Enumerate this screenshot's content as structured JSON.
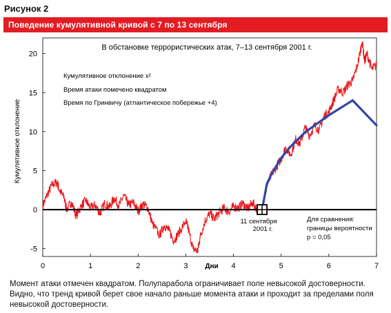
{
  "figure_label": "Рисунок 2",
  "banner_title": "Поведение кумулятивной кривой с 7 по 13 сентября",
  "caption": "Момент атаки отмечен квадратом. Полупарабола ограничивает поле невысокой достоверности. Видно, что тренд кривой берет свое начало раньше момента атаки и проходит за пределами поля невысокой достоверности.",
  "colors": {
    "banner": "#e31b23",
    "series": "#e8161b",
    "bound": "#2f45a8",
    "axis": "#000000"
  },
  "chart_data": {
    "type": "line",
    "title": "В обстановке террористических атак, 7–13 сентября 2001 г.",
    "annotations": [
      "Кумулятивное отклонение x²",
      "Время атаки помечено квадратом",
      "Время по Гринвичу (атлантическое побережье +4)"
    ],
    "xlabel": "Дни",
    "ylabel": "Кумулятивное отклонение",
    "xlim": [
      0,
      7
    ],
    "ylim": [
      -6,
      22
    ],
    "xticks": [
      0,
      1,
      2,
      3,
      4,
      5,
      6,
      7
    ],
    "yticks": [
      -5,
      0,
      5,
      10,
      15,
      20
    ],
    "grid": false,
    "attack_marker": {
      "x": 4.6,
      "y": 0,
      "label": "11 сентября 2001 г."
    },
    "comparison_note": "Для сравнения: границы вероятности p = 0,05",
    "series": [
      {
        "style": "noisy",
        "points": [
          [
            0,
            0.5
          ],
          [
            0.1,
            2
          ],
          [
            0.2,
            3.2
          ],
          [
            0.3,
            3.5
          ],
          [
            0.35,
            2.5
          ],
          [
            0.45,
            1.5
          ],
          [
            0.5,
            0
          ],
          [
            0.6,
            1
          ],
          [
            0.7,
            -0.8
          ],
          [
            0.8,
            0.4
          ],
          [
            0.9,
            1.2
          ],
          [
            1.0,
            0.2
          ],
          [
            1.1,
            0.6
          ],
          [
            1.2,
            -0.5
          ],
          [
            1.3,
            0.8
          ],
          [
            1.4,
            0.3
          ],
          [
            1.5,
            1.5
          ],
          [
            1.6,
            0.5
          ],
          [
            1.7,
            1.8
          ],
          [
            1.8,
            0.6
          ],
          [
            1.9,
            0.9
          ],
          [
            2.0,
            -0.2
          ],
          [
            2.1,
            0.7
          ],
          [
            2.2,
            0.3
          ],
          [
            2.3,
            -1.8
          ],
          [
            2.45,
            -3.3
          ],
          [
            2.55,
            -2
          ],
          [
            2.65,
            -2.7
          ],
          [
            2.75,
            -4
          ],
          [
            2.85,
            -3
          ],
          [
            3.0,
            -1.5
          ],
          [
            3.05,
            -2.4
          ],
          [
            3.15,
            -5
          ],
          [
            3.25,
            -5.3
          ],
          [
            3.3,
            -3.5
          ],
          [
            3.4,
            -1.5
          ],
          [
            3.5,
            -0.5
          ],
          [
            3.6,
            -1.2
          ],
          [
            3.7,
            -0.4
          ],
          [
            3.8,
            0.2
          ],
          [
            3.9,
            -0.3
          ],
          [
            4.0,
            0.4
          ],
          [
            4.1,
            0.2
          ],
          [
            4.2,
            0.8
          ],
          [
            4.3,
            0.1
          ],
          [
            4.4,
            0.9
          ],
          [
            4.5,
            0
          ],
          [
            4.6,
            0
          ],
          [
            4.7,
            3
          ],
          [
            4.8,
            4.5
          ],
          [
            4.9,
            5.5
          ],
          [
            5.0,
            6.5
          ],
          [
            5.1,
            8
          ],
          [
            5.2,
            7
          ],
          [
            5.3,
            9
          ],
          [
            5.4,
            8.5
          ],
          [
            5.5,
            10.5
          ],
          [
            5.6,
            9.5
          ],
          [
            5.7,
            10.8
          ],
          [
            5.8,
            10.2
          ],
          [
            5.9,
            12
          ],
          [
            6.0,
            12.5
          ],
          [
            6.1,
            14
          ],
          [
            6.2,
            15.5
          ],
          [
            6.3,
            15
          ],
          [
            6.4,
            16
          ],
          [
            6.5,
            16.5
          ],
          [
            6.6,
            18.5
          ],
          [
            6.7,
            21.5
          ],
          [
            6.75,
            19
          ],
          [
            6.8,
            20
          ],
          [
            6.9,
            18
          ],
          [
            7.0,
            18.5
          ]
        ]
      },
      {
        "style": "bound",
        "points": [
          [
            4.6,
            0
          ],
          [
            4.7,
            3.3
          ],
          [
            4.8,
            4.6
          ],
          [
            5.0,
            6.6
          ],
          [
            5.2,
            8.1
          ],
          [
            5.5,
            9.9
          ],
          [
            6.0,
            12.1
          ],
          [
            6.5,
            14.0
          ],
          [
            7.0,
            10.8
          ]
        ]
      }
    ]
  }
}
